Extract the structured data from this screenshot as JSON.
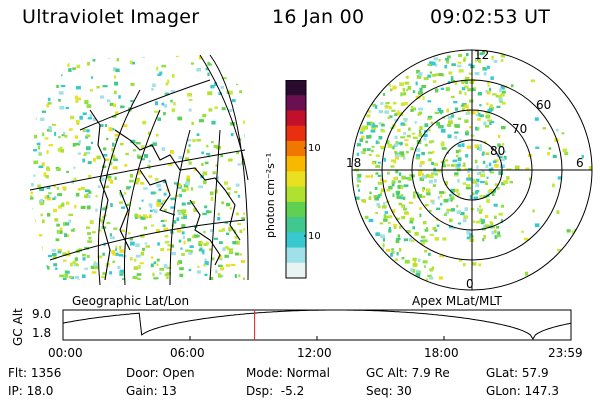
{
  "header": {
    "instrument": "Ultraviolet Imager",
    "date": "16 Jan 00",
    "time": "09:02:53 UT"
  },
  "left_panel": {
    "label": "Geographic Lat/Lon"
  },
  "right_panel": {
    "label": "Apex MLat/MLT",
    "mlt_labels": [
      "12",
      "18",
      "6",
      "0"
    ],
    "mlat_labels": [
      "60",
      "70",
      "80"
    ]
  },
  "colorbar": {
    "title": "photon cm⁻²s⁻¹",
    "ticks": [
      "100",
      "10"
    ],
    "colors": [
      "#2a0a2e",
      "#6a1050",
      "#c0102a",
      "#e83010",
      "#f07800",
      "#f8b800",
      "#e8e020",
      "#b0e030",
      "#60d050",
      "#40c890",
      "#38c8d0",
      "#a0e0e8",
      "#e8f4f4"
    ]
  },
  "altitude_plot": {
    "ylabel": "GC Alt",
    "y_ticks": [
      "9.0",
      "1.8"
    ],
    "x_ticks": [
      "00:00",
      "06:00",
      "12:00",
      "18:00",
      "23:59"
    ],
    "marker_time_hours": 9.05
  },
  "info": {
    "row1": [
      {
        "label": "Flt:",
        "value": "1356"
      },
      {
        "label": "Door:",
        "value": "Open"
      },
      {
        "label": "Mode:",
        "value": "Normal"
      },
      {
        "label": "GC Alt:",
        "value": "7.9 Re"
      },
      {
        "label": "GLat:",
        "value": "57.9"
      }
    ],
    "row2": [
      {
        "label": "IP:",
        "value": "18.0"
      },
      {
        "label": "Gain:",
        "value": "13"
      },
      {
        "label": "Dsp:",
        "value": "-5.2"
      },
      {
        "label": "Seq:",
        "value": "30"
      },
      {
        "label": "GLon:",
        "value": "147.3"
      }
    ]
  },
  "colors": {
    "marker": "#e02020",
    "accent_green": "#60d050"
  }
}
